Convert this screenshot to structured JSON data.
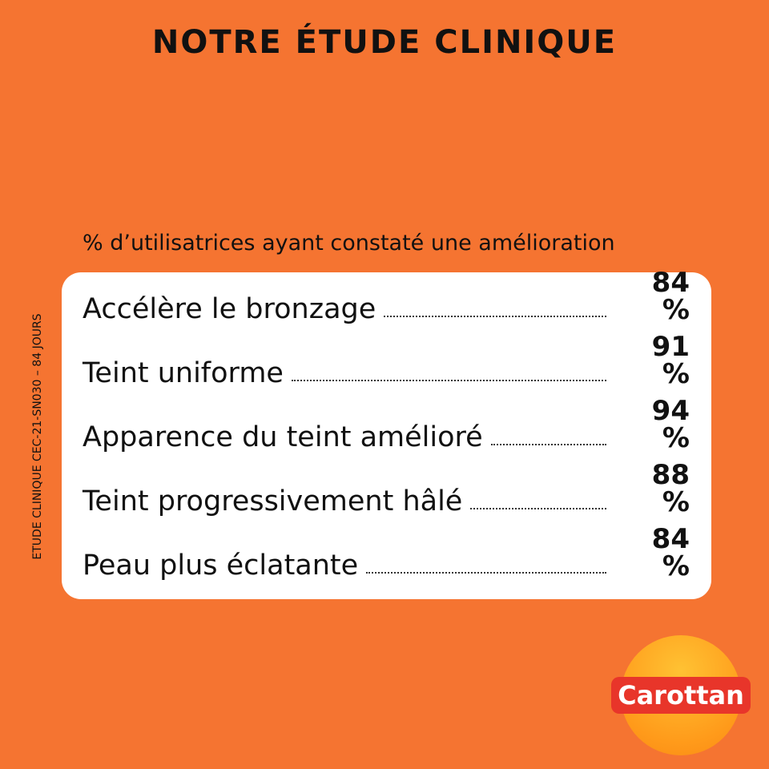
{
  "header": {
    "title": "NOTRE ÉTUDE CLINIQUE",
    "subtitle": "% d’utilisatrices ayant constaté une amélioration"
  },
  "side_note": "ETUDE CLINIQUE CEC-21-SN030 – 84 JOURS",
  "rows": [
    {
      "label": "Accélère le bronzage",
      "value": "84 %"
    },
    {
      "label": "Teint uniforme",
      "value": "91 %"
    },
    {
      "label": "Apparence du teint amélioré",
      "value": "94 %"
    },
    {
      "label": "Teint progressivement hâlé",
      "value": "88 %"
    },
    {
      "label": "Peau plus éclatante",
      "value": "84 %"
    }
  ],
  "logo": "Carottan"
}
